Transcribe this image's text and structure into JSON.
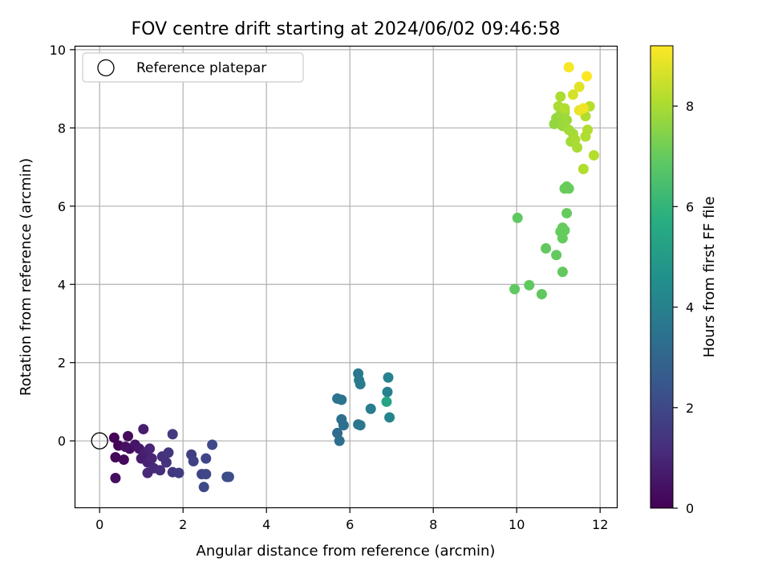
{
  "chart_data": {
    "type": "scatter",
    "title": "FOV centre drift starting at 2024/06/02 09:46:58",
    "xlabel": "Angular distance from reference (arcmin)",
    "ylabel": "Rotation from reference (arcmin)",
    "xlim": [
      -0.6,
      12.4
    ],
    "ylim": [
      -1.72,
      10.1
    ],
    "xticks": [
      "0",
      "2",
      "4",
      "6",
      "8",
      "10",
      "12"
    ],
    "yticks": [
      "0",
      "2",
      "4",
      "6",
      "8",
      "10"
    ],
    "grid": true,
    "legend_position": "top-left",
    "legend": [
      {
        "label": "Reference platepar",
        "marker": "open-circle"
      }
    ],
    "reference_point": {
      "x": 0,
      "y": 0
    },
    "colorbar": {
      "label": "Hours from first FF file",
      "colormap": "viridis",
      "range": [
        0,
        9.2
      ],
      "ticks": [
        "0",
        "2",
        "4",
        "6",
        "8"
      ]
    },
    "points": [
      {
        "x": 0.35,
        "y": 0.08,
        "t": 0.05
      },
      {
        "x": 0.45,
        "y": -0.12,
        "t": 0.1
      },
      {
        "x": 0.38,
        "y": -0.42,
        "t": 0.15
      },
      {
        "x": 0.58,
        "y": -0.48,
        "t": 0.2
      },
      {
        "x": 0.68,
        "y": 0.12,
        "t": 0.25
      },
      {
        "x": 0.72,
        "y": -0.2,
        "t": 0.3
      },
      {
        "x": 0.38,
        "y": -0.95,
        "t": 0.35
      },
      {
        "x": 0.62,
        "y": -0.15,
        "t": 0.4
      },
      {
        "x": 0.85,
        "y": -0.1,
        "t": 0.5
      },
      {
        "x": 0.95,
        "y": -0.2,
        "t": 0.6
      },
      {
        "x": 1.0,
        "y": -0.45,
        "t": 0.7
      },
      {
        "x": 1.05,
        "y": 0.3,
        "t": 0.75
      },
      {
        "x": 1.1,
        "y": -0.3,
        "t": 0.8
      },
      {
        "x": 1.15,
        "y": -0.55,
        "t": 0.9
      },
      {
        "x": 1.2,
        "y": -0.2,
        "t": 0.95
      },
      {
        "x": 1.25,
        "y": -0.45,
        "t": 1.0
      },
      {
        "x": 1.15,
        "y": -0.82,
        "t": 1.05
      },
      {
        "x": 1.3,
        "y": -0.7,
        "t": 1.1
      },
      {
        "x": 1.45,
        "y": -0.75,
        "t": 1.2
      },
      {
        "x": 1.5,
        "y": -0.4,
        "t": 1.3
      },
      {
        "x": 1.6,
        "y": -0.55,
        "t": 1.35
      },
      {
        "x": 1.65,
        "y": -0.3,
        "t": 1.4
      },
      {
        "x": 1.75,
        "y": -0.8,
        "t": 1.5
      },
      {
        "x": 1.75,
        "y": 0.17,
        "t": 1.55
      },
      {
        "x": 1.9,
        "y": -0.82,
        "t": 1.6
      },
      {
        "x": 2.2,
        "y": -0.35,
        "t": 1.7
      },
      {
        "x": 2.25,
        "y": -0.52,
        "t": 1.8
      },
      {
        "x": 2.45,
        "y": -0.85,
        "t": 1.85
      },
      {
        "x": 2.55,
        "y": -0.45,
        "t": 1.9
      },
      {
        "x": 2.55,
        "y": -0.85,
        "t": 1.95
      },
      {
        "x": 2.5,
        "y": -1.18,
        "t": 2.0
      },
      {
        "x": 2.7,
        "y": -0.1,
        "t": 2.05
      },
      {
        "x": 3.05,
        "y": -0.92,
        "t": 2.1
      },
      {
        "x": 3.1,
        "y": -0.92,
        "t": 2.15
      },
      {
        "x": 5.7,
        "y": 0.2,
        "t": 3.2
      },
      {
        "x": 5.75,
        "y": 0.0,
        "t": 3.3
      },
      {
        "x": 5.8,
        "y": 0.55,
        "t": 3.35
      },
      {
        "x": 5.85,
        "y": 0.4,
        "t": 3.4
      },
      {
        "x": 5.7,
        "y": 1.08,
        "t": 3.45
      },
      {
        "x": 5.8,
        "y": 1.05,
        "t": 3.5
      },
      {
        "x": 6.2,
        "y": 0.42,
        "t": 3.6
      },
      {
        "x": 6.25,
        "y": 0.4,
        "t": 3.65
      },
      {
        "x": 6.2,
        "y": 1.72,
        "t": 3.7
      },
      {
        "x": 6.22,
        "y": 1.55,
        "t": 3.75
      },
      {
        "x": 6.25,
        "y": 1.45,
        "t": 3.8
      },
      {
        "x": 6.5,
        "y": 0.82,
        "t": 3.9
      },
      {
        "x": 6.9,
        "y": 1.25,
        "t": 4.0
      },
      {
        "x": 6.92,
        "y": 1.62,
        "t": 4.1
      },
      {
        "x": 6.95,
        "y": 0.6,
        "t": 4.2
      },
      {
        "x": 6.88,
        "y": 1.0,
        "t": 5.4
      },
      {
        "x": 9.95,
        "y": 3.88,
        "t": 6.9
      },
      {
        "x": 10.3,
        "y": 3.98,
        "t": 6.9
      },
      {
        "x": 10.6,
        "y": 3.75,
        "t": 6.9
      },
      {
        "x": 10.02,
        "y": 5.7,
        "t": 6.9
      },
      {
        "x": 10.7,
        "y": 4.92,
        "t": 6.95
      },
      {
        "x": 10.95,
        "y": 4.75,
        "t": 6.95
      },
      {
        "x": 11.1,
        "y": 4.32,
        "t": 6.95
      },
      {
        "x": 11.05,
        "y": 5.35,
        "t": 7.0
      },
      {
        "x": 11.1,
        "y": 5.45,
        "t": 7.0
      },
      {
        "x": 11.15,
        "y": 5.38,
        "t": 7.0
      },
      {
        "x": 11.1,
        "y": 5.18,
        "t": 7.0
      },
      {
        "x": 11.2,
        "y": 5.82,
        "t": 7.0
      },
      {
        "x": 11.15,
        "y": 6.45,
        "t": 7.05
      },
      {
        "x": 11.2,
        "y": 6.5,
        "t": 7.05
      },
      {
        "x": 11.25,
        "y": 6.45,
        "t": 7.05
      },
      {
        "x": 10.9,
        "y": 8.1,
        "t": 7.7
      },
      {
        "x": 10.95,
        "y": 8.25,
        "t": 7.7
      },
      {
        "x": 11.0,
        "y": 8.15,
        "t": 7.75
      },
      {
        "x": 11.05,
        "y": 8.35,
        "t": 7.8
      },
      {
        "x": 11.1,
        "y": 8.05,
        "t": 7.8
      },
      {
        "x": 11.15,
        "y": 8.4,
        "t": 7.85
      },
      {
        "x": 11.2,
        "y": 8.2,
        "t": 7.85
      },
      {
        "x": 11.25,
        "y": 7.95,
        "t": 7.9
      },
      {
        "x": 11.3,
        "y": 7.65,
        "t": 7.9
      },
      {
        "x": 11.35,
        "y": 7.85,
        "t": 7.95
      },
      {
        "x": 11.4,
        "y": 7.7,
        "t": 8.0
      },
      {
        "x": 11.45,
        "y": 7.5,
        "t": 8.0
      },
      {
        "x": 11.0,
        "y": 8.55,
        "t": 8.0
      },
      {
        "x": 11.05,
        "y": 8.8,
        "t": 8.05
      },
      {
        "x": 11.15,
        "y": 8.5,
        "t": 8.1
      },
      {
        "x": 11.65,
        "y": 8.3,
        "t": 8.1
      },
      {
        "x": 11.7,
        "y": 7.95,
        "t": 8.1
      },
      {
        "x": 11.65,
        "y": 7.78,
        "t": 8.1
      },
      {
        "x": 11.6,
        "y": 6.95,
        "t": 8.1
      },
      {
        "x": 11.85,
        "y": 7.3,
        "t": 8.15
      },
      {
        "x": 11.75,
        "y": 8.55,
        "t": 8.2
      },
      {
        "x": 11.35,
        "y": 8.85,
        "t": 8.6
      },
      {
        "x": 11.5,
        "y": 9.05,
        "t": 8.8
      },
      {
        "x": 11.5,
        "y": 8.45,
        "t": 8.9
      },
      {
        "x": 11.6,
        "y": 8.5,
        "t": 9.0
      },
      {
        "x": 11.25,
        "y": 9.55,
        "t": 9.1
      },
      {
        "x": 11.68,
        "y": 9.32,
        "t": 9.2
      }
    ]
  }
}
